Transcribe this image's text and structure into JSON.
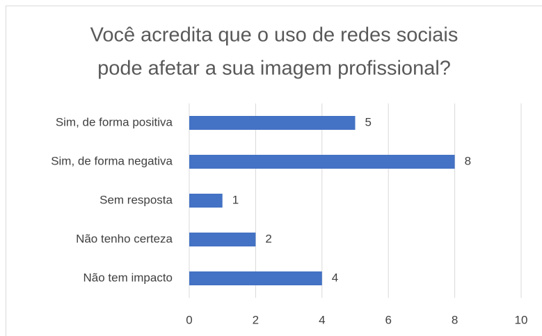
{
  "chart_data": {
    "type": "barh",
    "title": [
      "Você acredita que o uso de redes sociais",
      "pode afetar a sua imagem profissional?"
    ],
    "categories": [
      "Sim, de forma positiva",
      "Sim, de forma negativa",
      "Sem resposta",
      "Não tenho certeza",
      "Não tem impacto"
    ],
    "values": [
      5,
      8,
      1,
      2,
      4
    ],
    "color": "#4472c4",
    "xlim": [
      0,
      10
    ],
    "xticks": [
      0,
      2,
      4,
      6,
      8,
      10
    ],
    "grid": true
  }
}
